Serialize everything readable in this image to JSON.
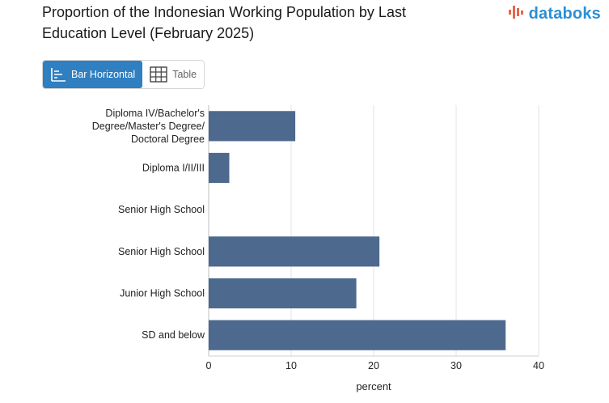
{
  "header": {
    "title_line1": "Proportion of the Indonesian Working Population by Last",
    "title_line2": "Education Level (February 2025)",
    "brand_name": "databoks",
    "brand_color": "#2b8fd6",
    "brand_icon_color": "#e8654f"
  },
  "view_toggle": {
    "bar_label": "Bar Horizontal",
    "bar_icon": "bar-horizontal-icon",
    "table_label": "Table",
    "table_icon": "table-grid-icon",
    "active": "bar",
    "active_color": "#2f7fc1"
  },
  "chart_data": {
    "type": "bar",
    "orientation": "horizontal",
    "categories": [
      [
        "Diploma IV/Bachelor's",
        "Degree/Master's Degree/",
        "Doctoral Degree"
      ],
      [
        "Diploma I/II/III"
      ],
      [
        "Senior High School"
      ],
      [
        "Senior High School"
      ],
      [
        "Junior High School"
      ],
      [
        "SD and below"
      ]
    ],
    "values": [
      10.5,
      2.5,
      0,
      20.7,
      17.9,
      36
    ],
    "bar_color": "#4d6a8e",
    "xlabel": "percent",
    "ylabel": "",
    "xlim": [
      0,
      40
    ],
    "xticks": [
      0,
      10,
      20,
      30,
      40
    ],
    "grid": true,
    "legend": "none"
  }
}
